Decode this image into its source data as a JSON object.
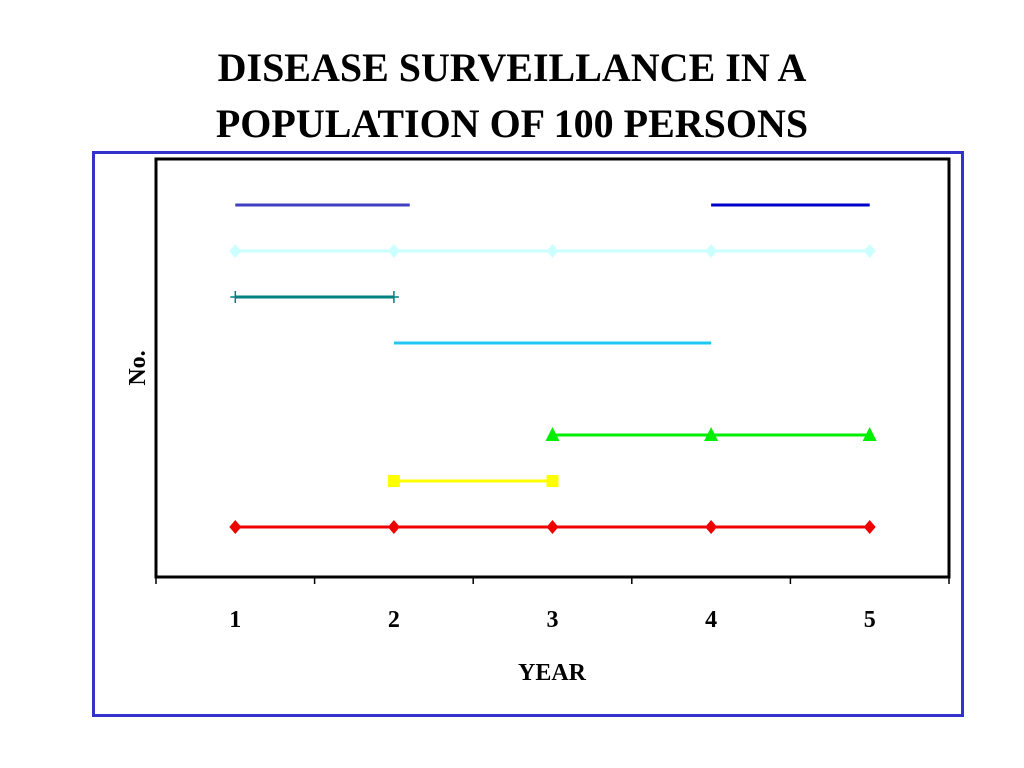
{
  "slide": {
    "title_line1": "DISEASE SURVEILLANCE IN A",
    "title_line2": "POPULATION OF 100 PERSONS"
  },
  "chart_data": {
    "type": "line",
    "xlabel": "YEAR",
    "ylabel": "No.",
    "categories": [
      "1",
      "2",
      "3",
      "4",
      "5"
    ],
    "y_ticks_shown": false,
    "grid": false,
    "legend": "none",
    "series": [
      {
        "row": 1,
        "x": [
          1.0,
          2.1
        ],
        "color": "#3f3fbf",
        "marker": "none"
      },
      {
        "row": 1,
        "x": [
          4.0,
          5.0
        ],
        "color": "#0000cc",
        "marker": "none"
      },
      {
        "row": 2,
        "x": [
          1,
          2,
          3,
          4,
          5
        ],
        "color": "#ccffff",
        "marker": "diamond"
      },
      {
        "row": 3,
        "x": [
          1,
          2
        ],
        "color": "#008080",
        "marker": "plus"
      },
      {
        "row": 4,
        "x": [
          2,
          4
        ],
        "color": "#1ec8f0",
        "marker": "none"
      },
      {
        "row": 6,
        "x": [
          3,
          4,
          5
        ],
        "color": "#00ee00",
        "marker": "triangle"
      },
      {
        "row": 7,
        "x": [
          2,
          3
        ],
        "color": "#ffff00",
        "marker": "square"
      },
      {
        "row": 8,
        "x": [
          1,
          2,
          3,
          4,
          5
        ],
        "color": "#ee0000",
        "marker": "diamond"
      }
    ]
  }
}
